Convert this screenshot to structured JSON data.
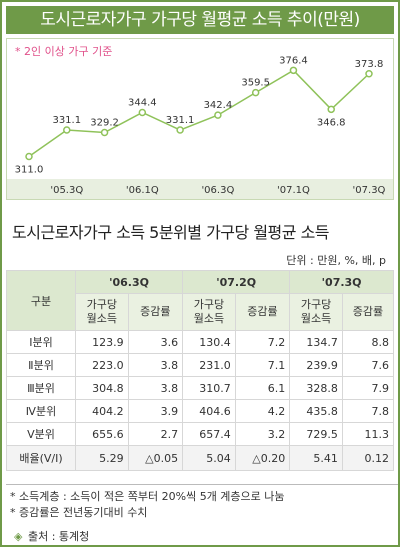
{
  "title": "도시근로자가구 가구당 월평균 소득 추이(만원)",
  "chart_data": {
    "type": "line",
    "note": "* 2인 이상 가구 기준",
    "x": [
      "",
      "'05.3Q",
      "",
      "'06.1Q",
      "",
      "'06.3Q",
      "",
      "'07.1Q",
      "",
      "'07.3Q"
    ],
    "tick_labels": [
      "'05.3Q",
      "'06.1Q",
      "'06.3Q",
      "'07.1Q",
      "'07.3Q"
    ],
    "values": [
      311.0,
      331.1,
      329.2,
      344.4,
      331.1,
      342.4,
      359.5,
      376.4,
      346.8,
      373.8
    ],
    "value_labels": [
      "311.0",
      "331.1",
      "329.2",
      "344.4",
      "331.1",
      "342.4",
      "359.5",
      "376.4",
      "346.8",
      "373.8"
    ],
    "ylim": [
      300,
      385
    ],
    "color": "#8fc25a"
  },
  "table": {
    "section_title": "도시근로자가구 소득 5분위별 가구당 월평균 소득",
    "unit": "단위 : 만원, %, 배, p",
    "group_header": "구분",
    "periods": [
      "'06.3Q",
      "'07.2Q",
      "'07.3Q"
    ],
    "col_income": "가구당 월소득",
    "col_income_l1": "가구당",
    "col_income_l2": "월소득",
    "col_rate": "증감률",
    "rows": [
      {
        "label": "Ⅰ분위",
        "v": [
          "123.9",
          "3.6",
          "130.4",
          "7.2",
          "134.7",
          "8.8"
        ]
      },
      {
        "label": "Ⅱ분위",
        "v": [
          "223.0",
          "3.8",
          "231.0",
          "7.1",
          "239.9",
          "7.6"
        ]
      },
      {
        "label": "Ⅲ분위",
        "v": [
          "304.8",
          "3.8",
          "310.7",
          "6.1",
          "328.8",
          "7.9"
        ]
      },
      {
        "label": "Ⅳ분위",
        "v": [
          "404.2",
          "3.9",
          "404.6",
          "4.2",
          "435.8",
          "7.8"
        ]
      },
      {
        "label": "Ⅴ분위",
        "v": [
          "655.6",
          "2.7",
          "657.4",
          "3.2",
          "729.5",
          "11.3"
        ]
      }
    ],
    "ratio_row": {
      "label": "배율(Ⅴ/Ⅰ)",
      "v": [
        "5.29",
        "△0.05",
        "5.04",
        "△0.20",
        "5.41",
        "0.12"
      ]
    }
  },
  "notes": [
    "* 소득계층 : 소득이 적은 쪽부터 20%씩 5개 계층으로 나눔",
    "* 증감률은 전년동기대비 수치"
  ],
  "source": "출처 : 통계청",
  "source_bullet": "◈"
}
